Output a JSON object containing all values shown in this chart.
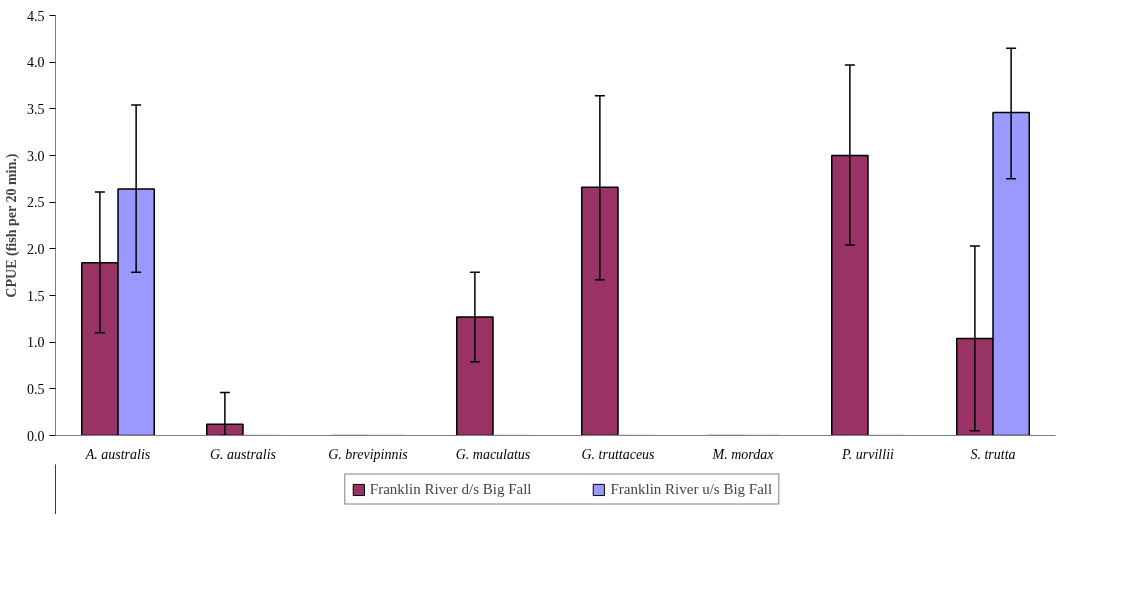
{
  "chart_data": {
    "type": "bar",
    "ylabel": "CPUE (fish per 20 min.)",
    "categories": [
      "A. australis",
      "G. australis",
      "G. brevipinnis",
      "G. maculatus",
      "G. truttaceus",
      "M. mordax",
      "P. urvillii",
      "S. trutta"
    ],
    "series": [
      {
        "name": "Franklin River d/s Big Fall",
        "color": "#993366",
        "values": [
          1.85,
          0.12,
          0,
          1.27,
          2.66,
          0,
          3.0,
          1.04
        ],
        "errors": [
          [
            1.1,
            2.61
          ],
          [
            0,
            0.46
          ],
          null,
          [
            0.79,
            1.75
          ],
          [
            1.67,
            3.64
          ],
          null,
          [
            2.04,
            3.97
          ],
          [
            0.05,
            2.03
          ]
        ]
      },
      {
        "name": "Franklin River u/s Big Fall",
        "color": "#9999ff",
        "values": [
          2.64,
          0,
          0,
          0,
          0,
          0,
          0,
          3.46
        ],
        "errors": [
          [
            1.75,
            3.54
          ],
          null,
          null,
          null,
          null,
          null,
          null,
          [
            2.75,
            4.15
          ]
        ]
      }
    ],
    "ylim": [
      0,
      4.5
    ],
    "yticks": [
      {
        "value": 0,
        "label": "0.0"
      },
      0.5,
      {
        "value": 1,
        "label": "1.0"
      },
      1.5,
      {
        "value": 2,
        "label": "2.0"
      },
      2.5,
      {
        "value": 3,
        "label": "3.0"
      },
      3.5,
      {
        "value": 4,
        "label": "4.0"
      },
      4.5
    ],
    "grid": false,
    "legend": "bottom"
  }
}
